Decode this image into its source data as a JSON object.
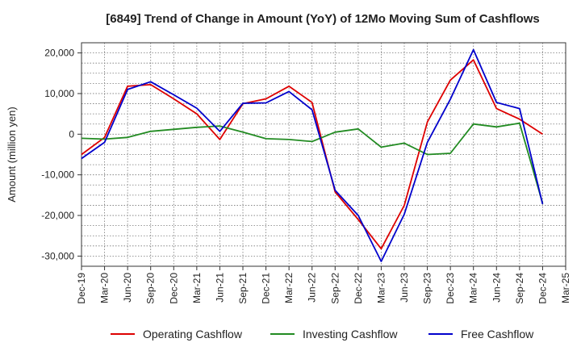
{
  "chart_data": {
    "type": "line",
    "title": "[6849]  Trend of Change in Amount (YoY) of 12Mo Moving Sum of Cashflows",
    "xlabel": "",
    "ylabel": "Amount (million yen)",
    "ylim": [
      -32500,
      22500
    ],
    "yticks": [
      20000,
      10000,
      0,
      -10000,
      -20000,
      -30000
    ],
    "ytick_labels": [
      "20,000",
      "10,000",
      "0",
      "-10,000",
      "-20,000",
      "-30,000"
    ],
    "categories": [
      "Dec-19",
      "Mar-20",
      "Jun-20",
      "Sep-20",
      "Dec-20",
      "Mar-21",
      "Jun-21",
      "Sep-21",
      "Dec-21",
      "Mar-22",
      "Jun-22",
      "Sep-22",
      "Dec-22",
      "Mar-23",
      "Jun-23",
      "Sep-23",
      "Dec-23",
      "Mar-24",
      "Jun-24",
      "Sep-24",
      "Dec-24",
      "Mar-25"
    ],
    "grid": true,
    "legend_position": "bottom",
    "series": [
      {
        "name": "Operating Cashflow",
        "color": "#dd0000",
        "values": [
          -5000,
          -800,
          11800,
          12200,
          8700,
          5000,
          -1300,
          7500,
          8700,
          11800,
          7800,
          -14200,
          -21000,
          -28200,
          -17500,
          3000,
          13300,
          18300,
          6300,
          3700,
          0,
          null
        ]
      },
      {
        "name": "Investing Cashflow",
        "color": "#228b22",
        "values": [
          -1000,
          -1200,
          -800,
          700,
          1200,
          1700,
          2000,
          500,
          -1100,
          -1300,
          -1800,
          500,
          1300,
          -3200,
          -2200,
          -5000,
          -4700,
          2500,
          1800,
          2700,
          -17000,
          null
        ]
      },
      {
        "name": "Free Cashflow",
        "color": "#0000cc",
        "values": [
          -6000,
          -2000,
          11000,
          12900,
          9700,
          6400,
          700,
          7600,
          7700,
          10500,
          6000,
          -13800,
          -20000,
          -31300,
          -19700,
          -2000,
          8600,
          20800,
          7800,
          6300,
          -17200,
          null
        ]
      }
    ]
  }
}
